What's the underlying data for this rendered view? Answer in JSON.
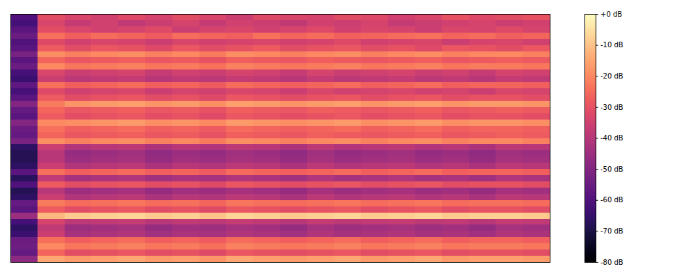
{
  "chart_data": {
    "type": "heatmap",
    "tick_labels": false,
    "z": [
      [
        -60,
        -31,
        -33,
        -35,
        -32,
        -34,
        -31,
        -33,
        -36,
        -32,
        -33,
        -34,
        -31,
        -32,
        -35,
        -33,
        -30,
        -32,
        -31,
        -30
      ],
      [
        -62,
        -33,
        -37,
        -35,
        -38,
        -36,
        -34,
        -37,
        -35,
        -36,
        -38,
        -35,
        -36,
        -34,
        -37,
        -36,
        -35,
        -34,
        -36,
        -35
      ],
      [
        -58,
        -31,
        -33,
        -35,
        -34,
        -32,
        -36,
        -34,
        -33,
        -35,
        -34,
        -32,
        -35,
        -33,
        -34,
        -36,
        -33,
        -34,
        -32,
        -34
      ],
      [
        -55,
        -24,
        -27,
        -25,
        -26,
        -28,
        -25,
        -26,
        -27,
        -24,
        -26,
        -25,
        -27,
        -26,
        -25,
        -24,
        -26,
        -25,
        -27,
        -26
      ],
      [
        -60,
        -32,
        -35,
        -33,
        -34,
        -36,
        -33,
        -35,
        -34,
        -33,
        -35,
        -34,
        -32,
        -35,
        -34,
        -33,
        -36,
        -34,
        -33,
        -35
      ],
      [
        -58,
        -28,
        -31,
        -29,
        -30,
        -32,
        -29,
        -31,
        -30,
        -28,
        -31,
        -30,
        -29,
        -31,
        -30,
        -32,
        -29,
        -30,
        -31,
        -29
      ],
      [
        -52,
        -19,
        -21,
        -20,
        -19,
        -21,
        -20,
        -22,
        -19,
        -20,
        -21,
        -20,
        -19,
        -21,
        -20,
        -19,
        -21,
        -20,
        -20,
        -21
      ],
      [
        -58,
        -26,
        -29,
        -28,
        -27,
        -29,
        -28,
        -30,
        -27,
        -28,
        -29,
        -27,
        -28,
        -29,
        -28,
        -27,
        -29,
        -28,
        -27,
        -28
      ],
      [
        -55,
        -20,
        -23,
        -22,
        -21,
        -23,
        -22,
        -24,
        -21,
        -22,
        -23,
        -22,
        -21,
        -23,
        -22,
        -21,
        -23,
        -22,
        -22,
        -23
      ],
      [
        -62,
        -33,
        -36,
        -35,
        -34,
        -37,
        -35,
        -36,
        -34,
        -35,
        -37,
        -34,
        -36,
        -35,
        -34,
        -36,
        -35,
        -37,
        -34,
        -35
      ],
      [
        -64,
        -36,
        -39,
        -38,
        -37,
        -40,
        -38,
        -39,
        -37,
        -38,
        -40,
        -37,
        -39,
        -38,
        -37,
        -39,
        -38,
        -40,
        -37,
        -38
      ],
      [
        -57,
        -24,
        -27,
        -26,
        -25,
        -27,
        -26,
        -28,
        -25,
        -26,
        -27,
        -26,
        -25,
        -27,
        -26,
        -25,
        -27,
        -26,
        -26,
        -27
      ],
      [
        -62,
        -32,
        -35,
        -34,
        -33,
        -36,
        -34,
        -35,
        -33,
        -34,
        -36,
        -33,
        -35,
        -34,
        -33,
        -35,
        -34,
        -36,
        -33,
        -34
      ],
      [
        -58,
        -28,
        -31,
        -30,
        -29,
        -31,
        -30,
        -32,
        -29,
        -30,
        -31,
        -30,
        -29,
        -31,
        -30,
        -29,
        -31,
        -30,
        -30,
        -31
      ],
      [
        -50,
        -22,
        -18,
        -17,
        -16,
        -18,
        -17,
        -19,
        -16,
        -17,
        -18,
        -17,
        -16,
        -18,
        -17,
        -16,
        -18,
        -17,
        -17,
        -18
      ],
      [
        -56,
        -26,
        -29,
        -28,
        -27,
        -29,
        -28,
        -30,
        -27,
        -28,
        -29,
        -27,
        -28,
        -29,
        -28,
        -27,
        -29,
        -28,
        -27,
        -28
      ],
      [
        -58,
        -28,
        -31,
        -30,
        -29,
        -31,
        -30,
        -32,
        -29,
        -30,
        -31,
        -30,
        -29,
        -31,
        -30,
        -29,
        -31,
        -30,
        -30,
        -31
      ],
      [
        -50,
        -20,
        -19,
        -18,
        -17,
        -19,
        -18,
        -20,
        -17,
        -18,
        -19,
        -18,
        -17,
        -19,
        -18,
        -17,
        -19,
        -18,
        -18,
        -19
      ],
      [
        -55,
        -24,
        -27,
        -26,
        -25,
        -27,
        -26,
        -28,
        -25,
        -26,
        -27,
        -26,
        -25,
        -27,
        -26,
        -25,
        -27,
        -26,
        -26,
        -27
      ],
      [
        -56,
        -26,
        -29,
        -28,
        -27,
        -29,
        -28,
        -30,
        -27,
        -28,
        -29,
        -27,
        -28,
        -29,
        -28,
        -27,
        -29,
        -28,
        -27,
        -28
      ],
      [
        -52,
        -19,
        -21,
        -20,
        -19,
        -21,
        -20,
        -22,
        -19,
        -20,
        -21,
        -20,
        -19,
        -21,
        -20,
        -19,
        -21,
        -20,
        -20,
        -21
      ],
      [
        -66,
        -36,
        -41,
        -40,
        -39,
        -42,
        -40,
        -41,
        -39,
        -40,
        -42,
        -39,
        -41,
        -40,
        -39,
        -41,
        -40,
        -42,
        -39,
        -40
      ],
      [
        -68,
        -40,
        -46,
        -45,
        -44,
        -47,
        -45,
        -46,
        -44,
        -45,
        -47,
        -44,
        -46,
        -45,
        -44,
        -46,
        -45,
        -47,
        -44,
        -45
      ],
      [
        -68,
        -40,
        -45,
        -44,
        -43,
        -46,
        -44,
        -45,
        -43,
        -44,
        -46,
        -43,
        -45,
        -44,
        -43,
        -45,
        -44,
        -46,
        -43,
        -44
      ],
      [
        -66,
        -36,
        -41,
        -40,
        -39,
        -42,
        -40,
        -41,
        -39,
        -40,
        -42,
        -39,
        -41,
        -40,
        -39,
        -41,
        -40,
        -42,
        -39,
        -40
      ],
      [
        -58,
        -24,
        -27,
        -26,
        -25,
        -27,
        -26,
        -28,
        -25,
        -26,
        -27,
        -26,
        -25,
        -27,
        -26,
        -25,
        -27,
        -26,
        -26,
        -27
      ],
      [
        -67,
        -38,
        -43,
        -42,
        -41,
        -44,
        -42,
        -43,
        -41,
        -42,
        -44,
        -41,
        -43,
        -42,
        -41,
        -43,
        -42,
        -44,
        -41,
        -42
      ],
      [
        -60,
        -28,
        -31,
        -30,
        -29,
        -31,
        -30,
        -32,
        -29,
        -30,
        -31,
        -30,
        -29,
        -31,
        -30,
        -29,
        -31,
        -30,
        -30,
        -31
      ],
      [
        -68,
        -40,
        -45,
        -44,
        -43,
        -46,
        -44,
        -45,
        -43,
        -44,
        -46,
        -43,
        -45,
        -44,
        -43,
        -45,
        -44,
        -46,
        -43,
        -44
      ],
      [
        -66,
        -36,
        -41,
        -40,
        -39,
        -42,
        -40,
        -41,
        -39,
        -40,
        -42,
        -39,
        -41,
        -40,
        -39,
        -41,
        -40,
        -42,
        -39,
        -40
      ],
      [
        -56,
        -22,
        -25,
        -24,
        -23,
        -25,
        -24,
        -26,
        -23,
        -24,
        -25,
        -24,
        -23,
        -25,
        -24,
        -23,
        -25,
        -24,
        -24,
        -25
      ],
      [
        -58,
        -28,
        -31,
        -30,
        -29,
        -31,
        -30,
        -32,
        -29,
        -30,
        -31,
        -30,
        -29,
        -31,
        -30,
        -29,
        -31,
        -30,
        -30,
        -31
      ],
      [
        -45,
        -12,
        -9,
        -8,
        -7,
        -9,
        -8,
        -10,
        -7,
        -8,
        -9,
        -8,
        -7,
        -9,
        -8,
        -7,
        -9,
        -8,
        -8,
        -9
      ],
      [
        -62,
        -34,
        -39,
        -38,
        -37,
        -40,
        -38,
        -39,
        -37,
        -38,
        -40,
        -37,
        -39,
        -38,
        -37,
        -39,
        -38,
        -40,
        -37,
        -38
      ],
      [
        -66,
        -38,
        -45,
        -44,
        -43,
        -46,
        -44,
        -45,
        -43,
        -44,
        -46,
        -43,
        -45,
        -44,
        -43,
        -45,
        -44,
        -46,
        -43,
        -44
      ],
      [
        -64,
        -36,
        -43,
        -42,
        -41,
        -44,
        -42,
        -43,
        -41,
        -42,
        -44,
        -41,
        -43,
        -42,
        -41,
        -43,
        -42,
        -44,
        -41,
        -42
      ],
      [
        -55,
        -24,
        -27,
        -26,
        -25,
        -27,
        -26,
        -28,
        -25,
        -26,
        -27,
        -26,
        -25,
        -27,
        -26,
        -25,
        -27,
        -26,
        -26,
        -27
      ],
      [
        -54,
        -20,
        -23,
        -22,
        -21,
        -23,
        -22,
        -24,
        -21,
        -22,
        -23,
        -22,
        -21,
        -23,
        -22,
        -21,
        -23,
        -22,
        -22,
        -23
      ],
      [
        -56,
        -26,
        -31,
        -30,
        -29,
        -31,
        -30,
        -32,
        -29,
        -30,
        -31,
        -30,
        -29,
        -31,
        -30,
        -29,
        -31,
        -30,
        -30,
        -31
      ],
      [
        -48,
        -15,
        -17,
        -16,
        -15,
        -17,
        -16,
        -18,
        -15,
        -16,
        -17,
        -16,
        -15,
        -17,
        -16,
        -15,
        -17,
        -16,
        -16,
        -17
      ]
    ],
    "colorbar_range": [
      -80,
      0
    ],
    "colorbar_ticks": [
      {
        "value": 0,
        "label": "+0 dB"
      },
      {
        "value": -10,
        "label": "-10 dB"
      },
      {
        "value": -20,
        "label": "-20 dB"
      },
      {
        "value": -30,
        "label": "-30 dB"
      },
      {
        "value": -40,
        "label": "-40 dB"
      },
      {
        "value": -50,
        "label": "-50 dB"
      },
      {
        "value": -60,
        "label": "-60 dB"
      },
      {
        "value": -70,
        "label": "-70 dB"
      },
      {
        "value": -80,
        "label": "-80 dB"
      }
    ]
  }
}
